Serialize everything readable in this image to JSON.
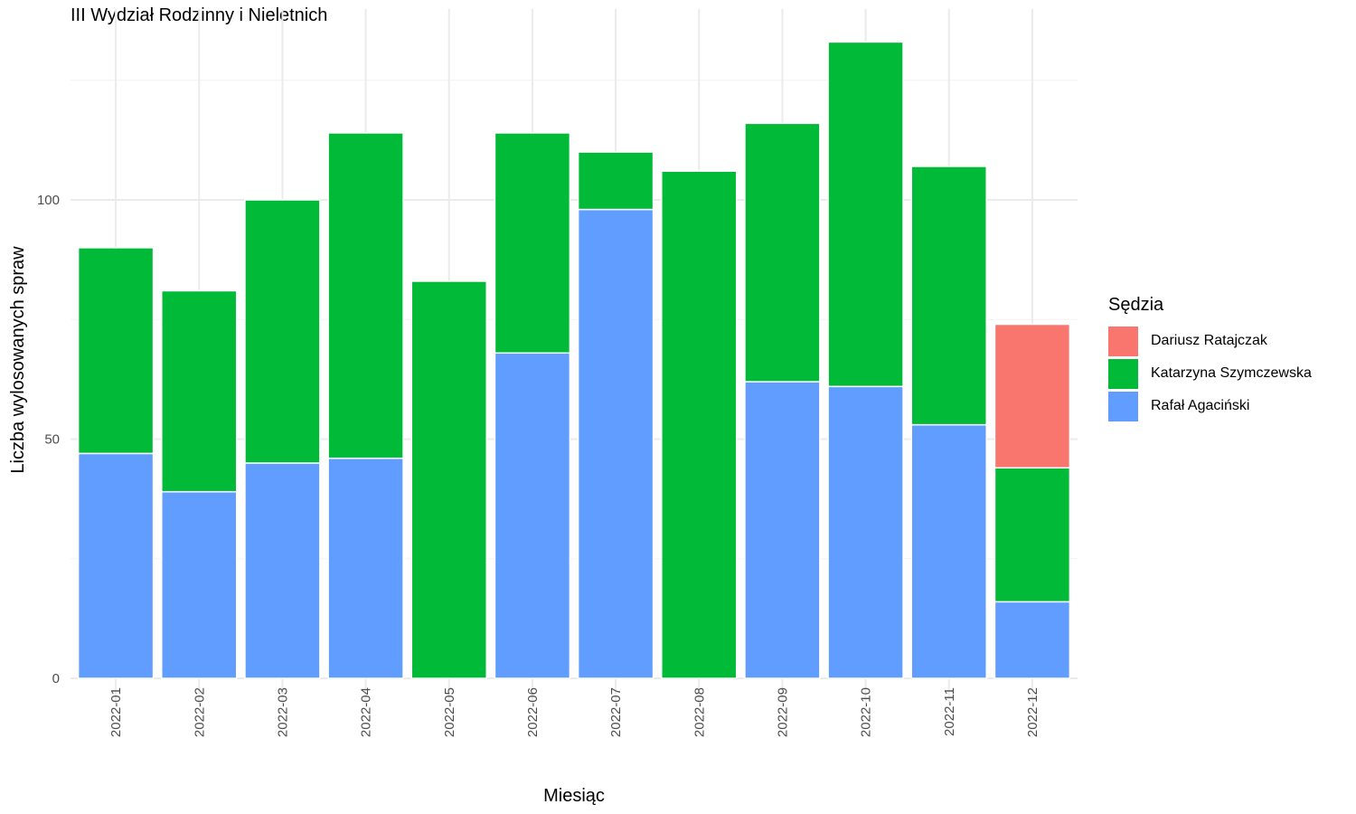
{
  "chart_data": {
    "type": "bar",
    "stacked": true,
    "title": "III Wydział Rodzinny i Nieletnich",
    "xlabel": "Miesiąc",
    "ylabel": "Liczba wylosowanych spraw",
    "ylim": [
      0,
      137
    ],
    "yticks": [
      0,
      50,
      100
    ],
    "grid": true,
    "legend_title": "Sędzia",
    "legend_position": "right",
    "categories": [
      "2022-01",
      "2022-02",
      "2022-03",
      "2022-04",
      "2022-05",
      "2022-06",
      "2022-07",
      "2022-08",
      "2022-09",
      "2022-10",
      "2022-11",
      "2022-12"
    ],
    "series": [
      {
        "name": "Rafał Agaciński",
        "color": "#619CFF",
        "values": [
          47,
          39,
          45,
          46,
          0,
          68,
          98,
          0,
          62,
          61,
          53,
          16
        ]
      },
      {
        "name": "Katarzyna Szymczewska",
        "color": "#00BA38",
        "values": [
          43,
          42,
          55,
          68,
          83,
          46,
          12,
          106,
          54,
          72,
          54,
          28
        ]
      },
      {
        "name": "Dariusz Ratajczak",
        "color": "#F8766D",
        "values": [
          0,
          0,
          0,
          0,
          0,
          0,
          0,
          0,
          0,
          0,
          0,
          30
        ]
      }
    ],
    "legend_order": [
      "Dariusz Ratajczak",
      "Katarzyna Szymczewska",
      "Rafał Agaciński"
    ]
  }
}
